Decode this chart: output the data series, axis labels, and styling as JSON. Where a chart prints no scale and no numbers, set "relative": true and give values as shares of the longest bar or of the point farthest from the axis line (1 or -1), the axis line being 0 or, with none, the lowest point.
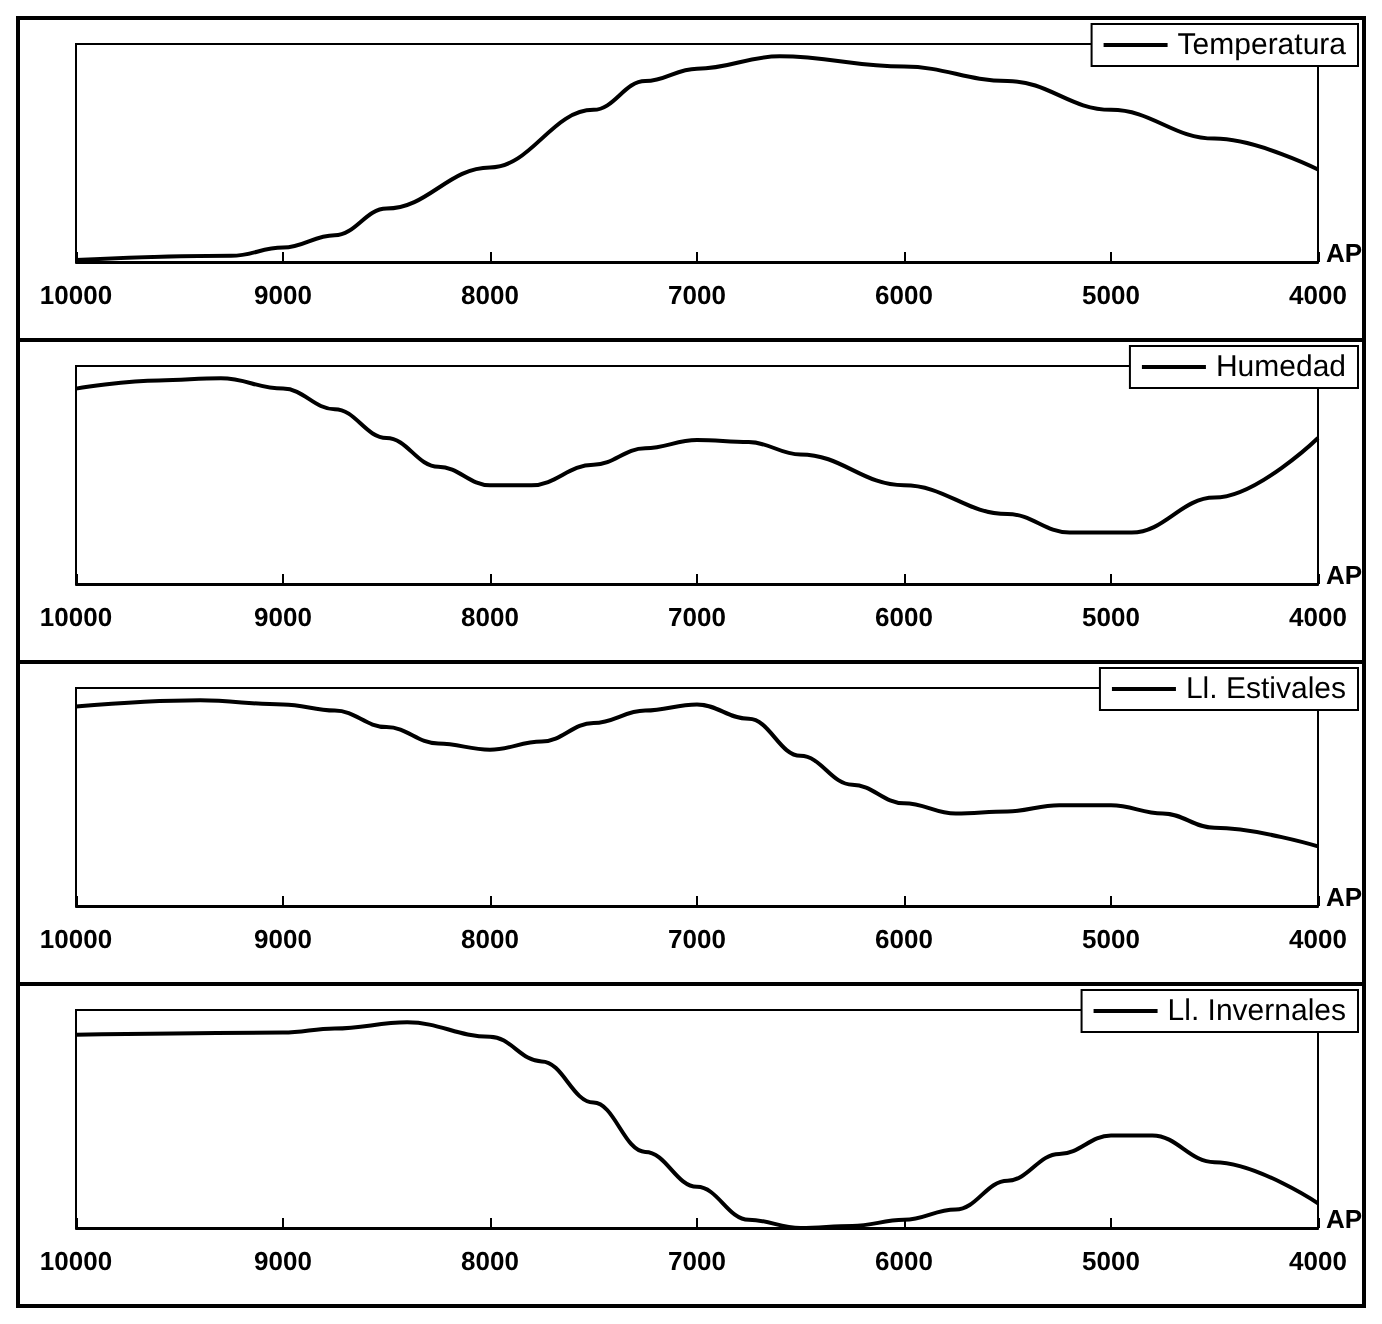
{
  "chart_data": [
    {
      "type": "line",
      "relative": true,
      "x": [
        10000,
        9250,
        9000,
        8750,
        8500,
        8000,
        7500,
        7250,
        7000,
        6600,
        6000,
        5500,
        5000,
        4500,
        4000
      ],
      "series": [
        {
          "name": "Temperatura",
          "color": "#000000",
          "values": [
            0.01,
            0.03,
            0.07,
            0.13,
            0.26,
            0.46,
            0.74,
            0.88,
            0.94,
            1,
            0.95,
            0.88,
            0.74,
            0.6,
            0.45
          ]
        }
      ],
      "xlim": [
        10000,
        4000
      ],
      "xticks": [
        10000,
        9000,
        8000,
        7000,
        6000,
        5000,
        4000
      ],
      "legend": "top right",
      "marker": "none",
      "line_style": "solid",
      "grid": false,
      "annotations": [
        "AP"
      ]
    },
    {
      "type": "line",
      "relative": true,
      "x": [
        10000,
        9600,
        9300,
        9000,
        8750,
        8500,
        8250,
        8000,
        7800,
        7500,
        7250,
        7000,
        6750,
        6500,
        6000,
        5500,
        5200,
        4900,
        4500,
        4000
      ],
      "series": [
        {
          "name": "Humedad",
          "color": "#000000",
          "values": [
            0.95,
            0.99,
            1,
            0.95,
            0.85,
            0.71,
            0.57,
            0.48,
            0.48,
            0.58,
            0.66,
            0.7,
            0.69,
            0.63,
            0.48,
            0.34,
            0.25,
            0.25,
            0.42,
            0.71
          ]
        }
      ],
      "xlim": [
        10000,
        4000
      ],
      "xticks": [
        10000,
        9000,
        8000,
        7000,
        6000,
        5000,
        4000
      ],
      "legend": "top right",
      "marker": "none",
      "line_style": "solid",
      "grid": false,
      "annotations": [
        "AP"
      ]
    },
    {
      "type": "line",
      "relative": true,
      "x": [
        10000,
        9400,
        9000,
        8750,
        8500,
        8250,
        8000,
        7750,
        7500,
        7250,
        7000,
        6750,
        6500,
        6250,
        6000,
        5750,
        5500,
        5250,
        5000,
        4750,
        4500,
        4000
      ],
      "series": [
        {
          "name": "Ll. Estivales",
          "color": "#000000",
          "values": [
            0.97,
            1,
            0.98,
            0.95,
            0.87,
            0.79,
            0.76,
            0.8,
            0.89,
            0.95,
            0.98,
            0.91,
            0.73,
            0.59,
            0.5,
            0.45,
            0.46,
            0.49,
            0.49,
            0.45,
            0.38,
            0.29
          ]
        }
      ],
      "xlim": [
        10000,
        4000
      ],
      "xticks": [
        10000,
        9000,
        8000,
        7000,
        6000,
        5000,
        4000
      ],
      "legend": "top right",
      "marker": "none",
      "line_style": "solid",
      "grid": false,
      "annotations": [
        "AP"
      ]
    },
    {
      "type": "line",
      "relative": true,
      "x": [
        10000,
        9000,
        8750,
        8400,
        8000,
        7750,
        7500,
        7250,
        7000,
        6750,
        6500,
        6250,
        6000,
        5750,
        5500,
        5250,
        5000,
        4800,
        4500,
        4000
      ],
      "series": [
        {
          "name": "Ll. Invernales",
          "color": "#000000",
          "values": [
            0.94,
            0.95,
            0.97,
            1,
            0.93,
            0.81,
            0.61,
            0.37,
            0.2,
            0.04,
            0,
            0.01,
            0.04,
            0.09,
            0.23,
            0.36,
            0.45,
            0.45,
            0.32,
            0.12
          ]
        }
      ],
      "xlim": [
        10000,
        4000
      ],
      "xticks": [
        10000,
        9000,
        8000,
        7000,
        6000,
        5000,
        4000
      ],
      "legend": "top right",
      "marker": "none",
      "line_style": "solid",
      "grid": false,
      "annotations": [
        "AP"
      ]
    }
  ]
}
